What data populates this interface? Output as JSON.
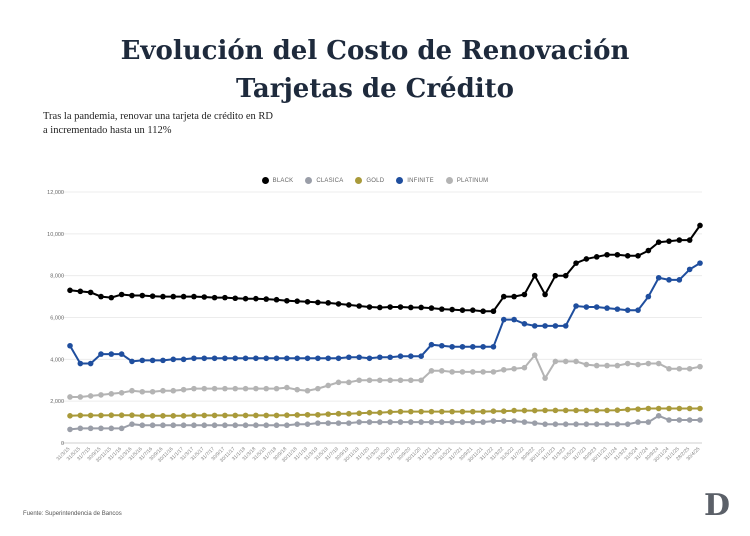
{
  "header": {
    "title_line1": "Evolución del Costo de Renovación",
    "title_line2": "Tarjetas de Crédito",
    "subtitle_line1": "Tras la pandemia, renovar una tarjeta de crédito en RD",
    "subtitle_line2": "a incrementado hasta un 112%"
  },
  "footer": {
    "source": "Fuente: Superintendencia de Bancos",
    "logo": "D"
  },
  "legend": [
    {
      "label": "BLACK",
      "color": "#000000"
    },
    {
      "label": "CLASICA",
      "color": "#9a9ea8"
    },
    {
      "label": "GOLD",
      "color": "#a99a3a"
    },
    {
      "label": "INFINITE",
      "color": "#1f4e9e"
    },
    {
      "label": "PLATINUM",
      "color": "#b4b4b4"
    }
  ],
  "chart_data": {
    "type": "line",
    "title": "Evolución del Costo de Renovación Tarjetas de Crédito",
    "xlabel": "",
    "ylabel": "",
    "ylim": [
      0,
      12000
    ],
    "yticks": [
      0,
      2000,
      4000,
      6000,
      8000,
      10000,
      12000
    ],
    "ytick_labels": [
      "0",
      "2,000",
      "4,000",
      "6,000",
      "8,000",
      "10,000",
      "12,000"
    ],
    "grid": true,
    "legend_position": "top",
    "x": [
      "31/3/15",
      "31/5/15",
      "31/7/15",
      "30/9/15",
      "30/11/15",
      "31/1/16",
      "31/3/16",
      "31/5/16",
      "31/7/16",
      "30/9/16",
      "30/11/16",
      "31/1/17",
      "31/3/17",
      "31/5/17",
      "31/7/17",
      "30/9/17",
      "30/11/17",
      "31/1/18",
      "31/3/18",
      "31/5/18",
      "31/7/18",
      "30/9/18",
      "30/11/18",
      "31/1/19",
      "31/3/19",
      "31/5/19",
      "31/7/19",
      "30/9/19",
      "30/11/19",
      "31/1/20",
      "31/3/20",
      "31/5/20",
      "31/7/20",
      "30/9/20",
      "30/11/20",
      "31/1/21",
      "31/3/21",
      "31/5/21",
      "31/7/21",
      "30/9/21",
      "30/11/21",
      "31/1/22",
      "31/3/22",
      "31/5/22",
      "31/7/22",
      "30/9/22",
      "30/11/22",
      "31/1/23",
      "31/3/23",
      "31/5/23",
      "31/7/23",
      "30/9/23",
      "30/11/23",
      "31/1/24",
      "31/3/24",
      "31/5/24",
      "31/7/24",
      "30/9/24",
      "30/11/24",
      "31/1/25",
      "28/2/25",
      "30/4/25"
    ],
    "series": [
      {
        "name": "BLACK",
        "color": "#000000",
        "values": [
          7300,
          7250,
          7200,
          7000,
          6950,
          7100,
          7050,
          7050,
          7020,
          7000,
          7000,
          7000,
          7000,
          6980,
          6950,
          6950,
          6920,
          6900,
          6900,
          6880,
          6850,
          6800,
          6780,
          6750,
          6720,
          6700,
          6650,
          6600,
          6550,
          6500,
          6480,
          6500,
          6500,
          6480,
          6480,
          6450,
          6400,
          6380,
          6350,
          6350,
          6300,
          6300,
          7000,
          7000,
          7100,
          8000,
          7100,
          8000,
          8000,
          8600,
          8800,
          8900,
          9000,
          9000,
          8950,
          8950,
          9200,
          9600,
          9650,
          9700,
          9700,
          10400
        ]
      },
      {
        "name": "CLASICA",
        "color": "#9a9ea8",
        "values": [
          650,
          700,
          700,
          700,
          700,
          700,
          900,
          850,
          850,
          850,
          850,
          850,
          850,
          850,
          850,
          850,
          850,
          850,
          850,
          850,
          850,
          850,
          900,
          900,
          950,
          950,
          950,
          950,
          1000,
          1000,
          1000,
          1000,
          1000,
          1000,
          1000,
          1000,
          1000,
          1000,
          1000,
          1000,
          1000,
          1050,
          1050,
          1050,
          1000,
          950,
          900,
          900,
          900,
          900,
          900,
          900,
          900,
          900,
          900,
          1000,
          1000,
          1300,
          1100,
          1100,
          1100,
          1100
        ]
      },
      {
        "name": "GOLD",
        "color": "#a99a3a",
        "values": [
          1300,
          1320,
          1320,
          1320,
          1330,
          1330,
          1330,
          1300,
          1300,
          1300,
          1300,
          1300,
          1320,
          1320,
          1320,
          1320,
          1320,
          1320,
          1320,
          1320,
          1320,
          1330,
          1340,
          1350,
          1350,
          1380,
          1400,
          1400,
          1420,
          1450,
          1450,
          1480,
          1500,
          1500,
          1500,
          1500,
          1500,
          1500,
          1500,
          1500,
          1500,
          1520,
          1520,
          1550,
          1550,
          1550,
          1560,
          1560,
          1560,
          1560,
          1560,
          1560,
          1560,
          1570,
          1600,
          1620,
          1650,
          1650,
          1650,
          1650,
          1650,
          1650
        ]
      },
      {
        "name": "INFINITE",
        "color": "#1f4e9e",
        "values": [
          4650,
          3800,
          3800,
          4250,
          4250,
          4250,
          3900,
          3950,
          3950,
          3950,
          4000,
          4000,
          4050,
          4050,
          4050,
          4050,
          4050,
          4050,
          4050,
          4050,
          4050,
          4050,
          4050,
          4050,
          4050,
          4050,
          4050,
          4100,
          4100,
          4050,
          4100,
          4100,
          4150,
          4150,
          4150,
          4700,
          4650,
          4600,
          4600,
          4600,
          4600,
          4600,
          5900,
          5900,
          5700,
          5600,
          5600,
          5600,
          5600,
          6550,
          6500,
          6500,
          6450,
          6400,
          6350,
          6350,
          7000,
          7900,
          7800,
          7800,
          8300,
          8600
        ]
      },
      {
        "name": "PLATINUM",
        "color": "#b4b4b4",
        "values": [
          2200,
          2200,
          2250,
          2300,
          2350,
          2400,
          2500,
          2450,
          2450,
          2500,
          2500,
          2550,
          2600,
          2600,
          2600,
          2600,
          2600,
          2600,
          2600,
          2600,
          2600,
          2650,
          2550,
          2500,
          2600,
          2750,
          2900,
          2900,
          3000,
          3000,
          3000,
          3000,
          3000,
          3000,
          3000,
          3450,
          3450,
          3400,
          3400,
          3400,
          3400,
          3400,
          3500,
          3550,
          3600,
          4200,
          3100,
          3900,
          3900,
          3900,
          3750,
          3700,
          3700,
          3700,
          3800,
          3750,
          3800,
          3800,
          3550,
          3550,
          3550,
          3650
        ]
      }
    ]
  }
}
